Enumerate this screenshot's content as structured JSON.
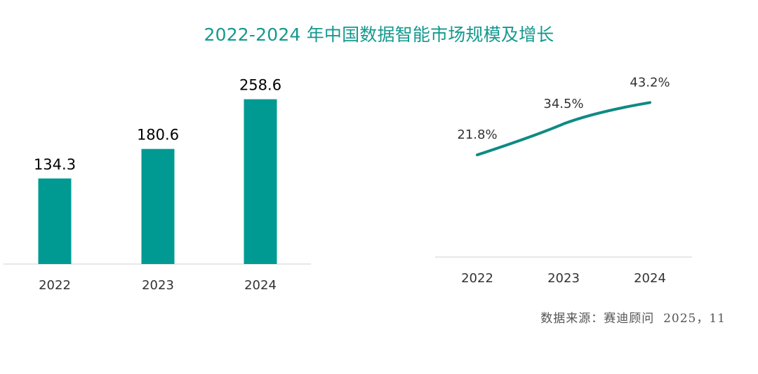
{
  "title": "2022-2024 年中国数据智能市场规模及增长",
  "source": "数据来源：赛迪顾问  2025，11",
  "colors": {
    "accent": "#009a93",
    "title": "#14998f",
    "axis": "#d9d9d9"
  },
  "chart_data": [
    {
      "type": "bar",
      "title": "2022-2024 年中国数据智能市场规模及增长",
      "categories": [
        "2022",
        "2023",
        "2024"
      ],
      "values": [
        134.3,
        180.6,
        258.6
      ],
      "value_labels": [
        "134.3",
        "180.6",
        "258.6"
      ],
      "ylim": [
        0,
        270
      ],
      "xlabel": "",
      "ylabel": "",
      "grid": false,
      "legend": "none"
    },
    {
      "type": "line",
      "categories": [
        "2022",
        "2023",
        "2024"
      ],
      "values": [
        21.8,
        34.5,
        43.2
      ],
      "value_labels": [
        "21.8%",
        "34.5%",
        "43.2%"
      ],
      "ylim": [
        -20,
        60
      ],
      "xlabel": "",
      "ylabel": "",
      "grid": false,
      "legend": "none"
    }
  ]
}
